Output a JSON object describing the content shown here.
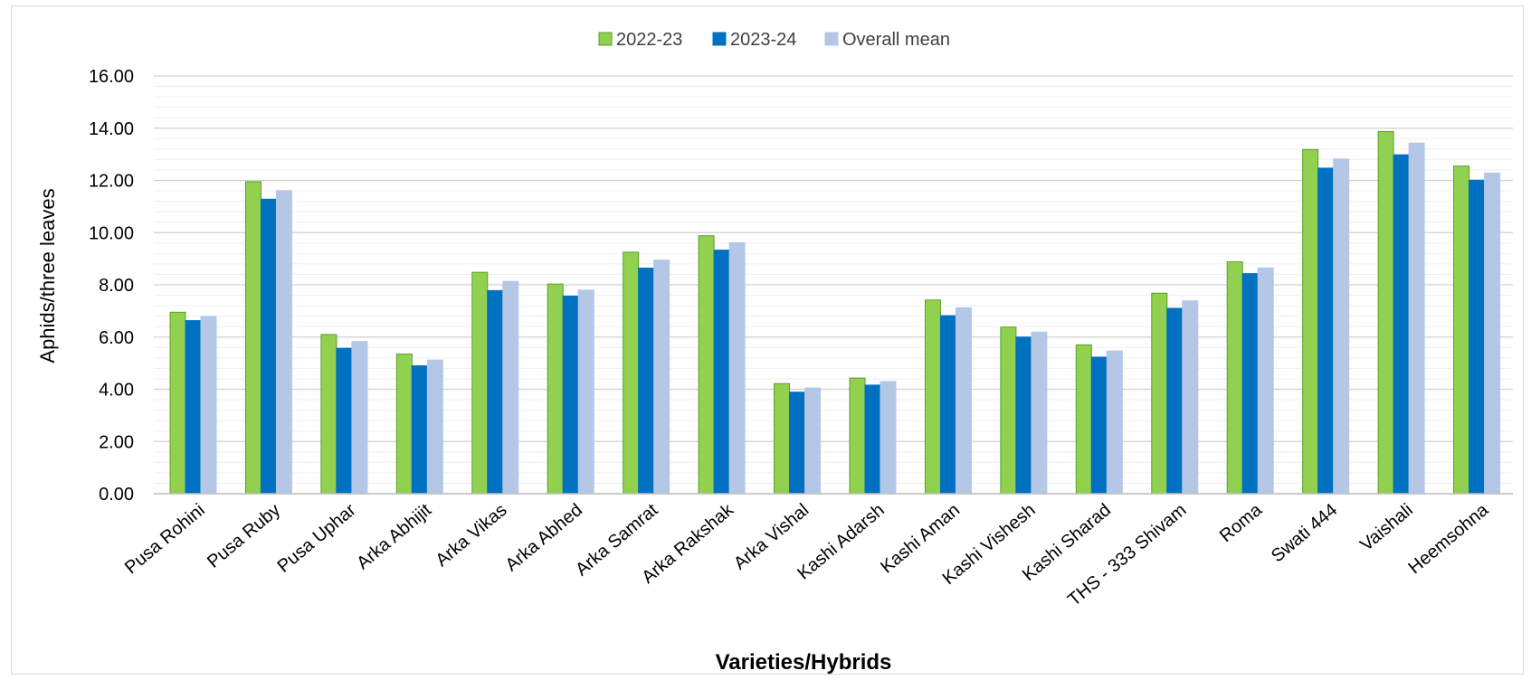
{
  "chart_data": {
    "type": "bar",
    "xlabel": "Varieties/Hybrids",
    "ylabel": "Aphids/three leaves",
    "ylim": [
      0,
      16
    ],
    "ytick_step": 2,
    "ytick_labels": [
      "0.00",
      "2.00",
      "4.00",
      "6.00",
      "8.00",
      "10.00",
      "12.00",
      "14.00",
      "16.00"
    ],
    "grid": true,
    "legend_position": "top-center",
    "categories": [
      "Pusa Rohini",
      "Pusa Ruby",
      "Pusa Uphar",
      "Arka Abhijit",
      "Arka Vikas",
      "Arka Abhed",
      "Arka Samrat",
      "Arka Rakshak",
      "Arka Vishal",
      "Kashi Adarsh",
      "Kashi Aman",
      "Kashi Vishesh",
      "Kashi Sharad",
      "THS - 333 Shivam",
      "Roma",
      "Swati 444",
      "Vaishali",
      "Heemsohna"
    ],
    "series": [
      {
        "name": "2022-23",
        "color": "#92d050",
        "stroke": "#5a9e2a",
        "values": [
          6.95,
          11.95,
          6.1,
          5.35,
          8.48,
          8.03,
          9.25,
          9.88,
          4.22,
          4.43,
          7.42,
          6.38,
          5.7,
          7.68,
          8.88,
          13.18,
          13.87,
          12.55
        ]
      },
      {
        "name": "2023-24",
        "color": "#0070c0",
        "stroke": "#0070c0",
        "values": [
          6.63,
          11.28,
          5.57,
          4.9,
          7.78,
          7.57,
          8.64,
          9.33,
          3.89,
          4.16,
          6.82,
          6.0,
          5.23,
          7.1,
          8.43,
          12.47,
          12.98,
          12.01
        ]
      },
      {
        "name": "Overall mean",
        "color": "#b4c7e7",
        "stroke": "#b4c7e7",
        "values": [
          6.79,
          11.61,
          5.83,
          5.12,
          8.13,
          7.8,
          8.95,
          9.61,
          4.05,
          4.3,
          7.12,
          6.19,
          5.47,
          7.39,
          8.65,
          12.82,
          13.43,
          12.28
        ]
      }
    ]
  }
}
